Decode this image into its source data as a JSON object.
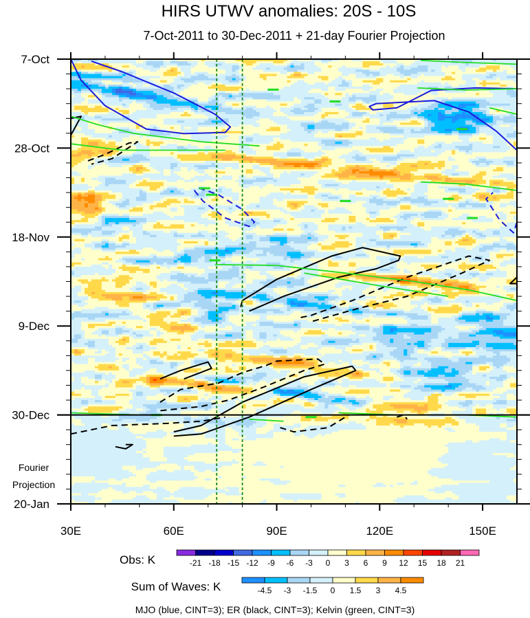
{
  "chart_data": {
    "type": "heatmap",
    "title": "HIRS UTWV anomalies: 20S - 10S",
    "subtitle": "7-Oct-2011 to 30-Dec-2011 + 21-day Fourier Projection",
    "x_axis": {
      "range": [
        30,
        160
      ],
      "ticks": [
        {
          "value": 30,
          "label": "30E"
        },
        {
          "value": 60,
          "label": "60E"
        },
        {
          "value": 90,
          "label": "90E"
        },
        {
          "value": 120,
          "label": "120E"
        },
        {
          "value": 150,
          "label": "150E"
        }
      ]
    },
    "y_axis": {
      "range_days": [
        0,
        105
      ],
      "direction": "time increases downward",
      "ticks": [
        {
          "day": 0,
          "label": "7-Oct"
        },
        {
          "day": 21,
          "label": "28-Oct"
        },
        {
          "day": 42,
          "label": "18-Nov"
        },
        {
          "day": 63,
          "label": "9-Dec"
        },
        {
          "day": 84,
          "label": "30-Dec"
        },
        {
          "day": 105,
          "label": "20-Jan"
        }
      ]
    },
    "projection_start_day": 84,
    "projection_label": [
      "Fourier",
      "Projection"
    ],
    "reference_longitudes": [
      72.5,
      80
    ],
    "obs_colorbar": {
      "label": "Obs: K",
      "levels": [
        "-21",
        "-18",
        "-15",
        "-12",
        "-9",
        "-6",
        "-3",
        "0",
        "3",
        "6",
        "9",
        "12",
        "15",
        "18",
        "21"
      ],
      "colors": [
        "#8a2be2",
        "#00008b",
        "#0000cd",
        "#4169e1",
        "#1e90ff",
        "#00bfff",
        "#a9d6f5",
        "#d4f0fa",
        "#ffffcc",
        "#ffd94a",
        "#ffb347",
        "#ff8c00",
        "#ff4500",
        "#e60000",
        "#b22222",
        "#ff69b4"
      ]
    },
    "waves_colorbar": {
      "label": "Sum of Waves: K",
      "levels": [
        "-4.5",
        "-3",
        "-1.5",
        "0",
        "1.5",
        "3",
        "4.5"
      ],
      "colors": [
        "#1e90ff",
        "#00bfff",
        "#a9d6f5",
        "#d4f0fa",
        "#ffffcc",
        "#ffd94a",
        "#ffb347",
        "#ff8c00"
      ]
    },
    "contour_legend": "MJO (blue, CINT=3); ER (black, CINT=3); Kelvin (green, CINT=3)",
    "series": [
      {
        "name": "MJO",
        "color": "#1a1adc",
        "cint": 3
      },
      {
        "name": "ER",
        "color": "#000000",
        "cint": 3
      },
      {
        "name": "Kelvin",
        "color": "#22dd22",
        "cint": 3
      }
    ],
    "field_features": [
      {
        "kind": "neg",
        "lon": 47,
        "day": 8,
        "value": -10,
        "slon": 10,
        "sday": 5,
        "tilt": -0.14
      },
      {
        "kind": "neg",
        "lon": 37,
        "day": 4,
        "value": -7,
        "slon": 7,
        "sday": 3,
        "tilt": -0.1
      },
      {
        "kind": "neg",
        "lon": 143,
        "day": 14,
        "value": -9,
        "slon": 11,
        "sday": 5,
        "tilt": 0
      },
      {
        "kind": "pos",
        "lon": 110,
        "day": 26,
        "value": 8,
        "slon": 14,
        "sday": 4,
        "tilt": -0.08
      },
      {
        "kind": "pos",
        "lon": 34,
        "day": 34,
        "value": 11,
        "slon": 7,
        "sday": 3,
        "tilt": 0
      },
      {
        "kind": "pos",
        "lon": 35,
        "day": 21,
        "value": 6,
        "slon": 8,
        "sday": 3,
        "tilt": 0
      },
      {
        "kind": "neg",
        "lon": 40,
        "day": 39,
        "value": -5,
        "slon": 7,
        "sday": 3,
        "tilt": 0
      },
      {
        "kind": "neg",
        "lon": 66,
        "day": 47,
        "value": -4,
        "slon": 13,
        "sday": 3,
        "tilt": 0
      },
      {
        "kind": "neg",
        "lon": 95,
        "day": 45,
        "value": -6,
        "slon": 8,
        "sday": 3,
        "tilt": 0
      },
      {
        "kind": "pos",
        "lon": 135,
        "day": 53,
        "value": 9,
        "slon": 12,
        "sday": 3,
        "tilt": -0.11
      },
      {
        "kind": "pos",
        "lon": 42,
        "day": 55,
        "value": 6,
        "slon": 10,
        "sday": 3,
        "tilt": 0
      },
      {
        "kind": "neg",
        "lon": 100,
        "day": 58,
        "value": -8,
        "slon": 9,
        "sday": 3,
        "tilt": -0.1
      },
      {
        "kind": "neg",
        "lon": 70,
        "day": 58,
        "value": -7,
        "slon": 7,
        "sday": 4,
        "tilt": 0
      },
      {
        "kind": "neg",
        "lon": 155,
        "day": 65,
        "value": -6,
        "slon": 9,
        "sday": 6,
        "tilt": 0
      },
      {
        "kind": "pos",
        "lon": 60,
        "day": 62,
        "value": 6,
        "slon": 8,
        "sday": 3,
        "tilt": 0
      },
      {
        "kind": "neg",
        "lon": 128,
        "day": 66,
        "value": -6,
        "slon": 10,
        "sday": 4,
        "tilt": 0
      },
      {
        "kind": "pos",
        "lon": 70,
        "day": 77,
        "value": 10,
        "slon": 12,
        "sday": 3,
        "tilt": -0.12
      },
      {
        "kind": "pos",
        "lon": 96,
        "day": 72,
        "value": 7,
        "slon": 12,
        "sday": 3,
        "tilt": -0.12
      },
      {
        "kind": "neg",
        "lon": 95,
        "day": 79,
        "value": -10,
        "slon": 9,
        "sday": 4,
        "tilt": -0.13
      },
      {
        "kind": "pos",
        "lon": 125,
        "day": 82,
        "value": 6,
        "slon": 12,
        "sday": 3,
        "tilt": 0
      },
      {
        "kind": "neg",
        "lon": 140,
        "day": 76,
        "value": -5,
        "slon": 12,
        "sday": 4,
        "tilt": 0
      },
      {
        "kind": "neg",
        "lon": 75,
        "day": 86,
        "value": -3,
        "slon": 10,
        "sday": 2,
        "tilt": -0.15
      },
      {
        "kind": "neg",
        "lon": 35,
        "day": 92,
        "value": -2,
        "slon": 8,
        "sday": 6,
        "tilt": 0
      },
      {
        "kind": "pos",
        "lon": 135,
        "day": 86,
        "value": 3,
        "slon": 15,
        "sday": 3,
        "tilt": 0
      },
      {
        "kind": "pos",
        "lon": 112,
        "day": 95,
        "value": 1,
        "slon": 30,
        "sday": 8,
        "tilt": 0
      },
      {
        "kind": "neg",
        "lon": 150,
        "day": 98,
        "value": -1,
        "slon": 12,
        "sday": 8,
        "tilt": 0
      }
    ],
    "contours": [
      {
        "wave": "MJO",
        "style": "solid",
        "points": [
          [
            30,
            0
          ],
          [
            33,
            5
          ],
          [
            40,
            11
          ],
          [
            52,
            16.5
          ],
          [
            63,
            17.6
          ],
          [
            75,
            17.3
          ],
          [
            76.5,
            16
          ],
          [
            72,
            13
          ],
          [
            60,
            8
          ],
          [
            45,
            3
          ],
          [
            36,
            0.5
          ]
        ]
      },
      {
        "wave": "MJO",
        "style": "solid",
        "points": [
          [
            160,
            21.5
          ],
          [
            154,
            17
          ],
          [
            146,
            12.5
          ],
          [
            136,
            9.8
          ],
          [
            119,
            10.5
          ],
          [
            117,
            11.2
          ],
          [
            118,
            12
          ],
          [
            125,
            11.5
          ],
          [
            135,
            7.4
          ],
          [
            148,
            6.8
          ],
          [
            160,
            7
          ]
        ]
      },
      {
        "wave": "MJO",
        "style": "dashed",
        "points": [
          [
            66,
            31
          ],
          [
            68.5,
            33.5
          ],
          [
            75,
            37.5
          ],
          [
            82,
            39.5
          ],
          [
            83.5,
            38.5
          ],
          [
            80,
            35.5
          ],
          [
            73,
            32
          ],
          [
            67.5,
            30.5
          ],
          [
            66,
            31
          ]
        ]
      },
      {
        "wave": "MJO",
        "style": "dashed",
        "points": [
          [
            160,
            38.5
          ],
          [
            159,
            41
          ],
          [
            155,
            38
          ],
          [
            151,
            33
          ],
          [
            153,
            31.5
          ]
        ]
      },
      {
        "wave": "ER",
        "style": "solid",
        "points": [
          [
            30,
            14
          ],
          [
            33,
            13.5
          ],
          [
            30,
            18
          ]
        ]
      },
      {
        "wave": "ER",
        "style": "dashed",
        "points": [
          [
            35,
            24
          ],
          [
            40,
            22.5
          ],
          [
            47,
            19.8
          ],
          [
            49.5,
            19.5
          ],
          [
            42,
            23.5
          ],
          [
            36,
            24.8
          ]
        ]
      },
      {
        "wave": "ER",
        "style": "solid",
        "points": [
          [
            79.5,
            58.5
          ],
          [
            80,
            57
          ],
          [
            90,
            52
          ],
          [
            106,
            46.5
          ],
          [
            115,
            44.5
          ],
          [
            126,
            46.5
          ],
          [
            125.5,
            47.5
          ],
          [
            119,
            49.5
          ],
          [
            108,
            51.5
          ],
          [
            92,
            56
          ],
          [
            82,
            59.5
          ]
        ]
      },
      {
        "wave": "ER",
        "style": "dashed",
        "points": [
          [
            97,
            61
          ],
          [
            100,
            60.5
          ],
          [
            112,
            57
          ],
          [
            128,
            51.5
          ],
          [
            146,
            46.5
          ],
          [
            152,
            47.5
          ],
          [
            144,
            50.5
          ],
          [
            128,
            56
          ],
          [
            113,
            59
          ],
          [
            100,
            62
          ]
        ]
      },
      {
        "wave": "ER",
        "style": "solid",
        "points": [
          [
            160,
            53
          ],
          [
            158,
            53
          ],
          [
            160,
            51.5
          ]
        ]
      },
      {
        "wave": "ER",
        "style": "solid",
        "points": [
          [
            56,
            75.5
          ],
          [
            62,
            73.5
          ],
          [
            70,
            71.5
          ],
          [
            71,
            73
          ],
          [
            63,
            75.5
          ]
        ]
      },
      {
        "wave": "ER",
        "style": "dashed",
        "points": [
          [
            56,
            81
          ],
          [
            62,
            78
          ],
          [
            73,
            76.5
          ],
          [
            80,
            74
          ],
          [
            87,
            72.3
          ],
          [
            90,
            71.3
          ],
          [
            102,
            70.8
          ],
          [
            104,
            72
          ],
          [
            98,
            73.5
          ],
          [
            86,
            77.5
          ],
          [
            76,
            80.5
          ],
          [
            68,
            82
          ],
          [
            56,
            83
          ]
        ]
      },
      {
        "wave": "ER",
        "style": "solid",
        "points": [
          [
            60,
            88
          ],
          [
            68,
            86.5
          ],
          [
            80,
            81
          ],
          [
            98,
            75
          ],
          [
            112,
            72.5
          ],
          [
            113,
            73.5
          ],
          [
            100,
            78
          ],
          [
            82,
            84.5
          ],
          [
            68,
            88.5
          ],
          [
            60,
            89
          ]
        ]
      },
      {
        "wave": "ER",
        "style": "dashed",
        "points": [
          [
            30,
            88.5
          ],
          [
            42,
            86.5
          ],
          [
            58,
            86
          ],
          [
            68,
            85.5
          ],
          [
            75,
            84.5
          ]
        ]
      },
      {
        "wave": "ER",
        "style": "dashed",
        "points": [
          [
            91,
            87
          ],
          [
            95,
            88
          ],
          [
            105,
            87
          ],
          [
            111,
            84
          ]
        ]
      },
      {
        "wave": "ER",
        "style": "dashed",
        "points": [
          [
            125,
            84.5
          ],
          [
            127,
            84
          ],
          [
            128,
            85
          ]
        ]
      },
      {
        "wave": "ER",
        "style": "solid",
        "points": [
          [
            43,
            91.5
          ],
          [
            46,
            92
          ],
          [
            48,
            91
          ],
          [
            46,
            91
          ]
        ]
      },
      {
        "wave": "Kelvin",
        "style": "solid",
        "points": [
          [
            30,
            13.5
          ],
          [
            38,
            15.5
          ],
          [
            48,
            17.5
          ],
          [
            58,
            18.5
          ],
          [
            68,
            19.5
          ],
          [
            85,
            20.5
          ]
        ]
      },
      {
        "wave": "Kelvin",
        "style": "solid",
        "points": [
          [
            30,
            20
          ],
          [
            45,
            21.5
          ],
          [
            60,
            21.5
          ],
          [
            75,
            21.5
          ]
        ]
      },
      {
        "wave": "Kelvin",
        "style": "solid",
        "points": [
          [
            132,
            0.3
          ],
          [
            145,
            0.8
          ],
          [
            160,
            1.2
          ]
        ]
      },
      {
        "wave": "Kelvin",
        "style": "solid",
        "points": [
          [
            131,
            6.8
          ],
          [
            145,
            7.3
          ],
          [
            160,
            7
          ]
        ]
      },
      {
        "wave": "Kelvin",
        "style": "solid",
        "points": [
          [
            152,
            11.5
          ],
          [
            160,
            13
          ]
        ]
      },
      {
        "wave": "Kelvin",
        "style": "solid",
        "points": [
          [
            132,
            29
          ],
          [
            145,
            29.5
          ],
          [
            160,
            31
          ]
        ]
      },
      {
        "wave": "Kelvin",
        "style": "solid",
        "points": [
          [
            72,
            48.5
          ],
          [
            90,
            48.7
          ],
          [
            110,
            50.5
          ],
          [
            130,
            52.5
          ],
          [
            146,
            54.5
          ],
          [
            160,
            57
          ]
        ]
      },
      {
        "wave": "Kelvin",
        "style": "solid",
        "points": [
          [
            98,
            50.5
          ],
          [
            120,
            53.5
          ],
          [
            140,
            56
          ]
        ]
      },
      {
        "wave": "Kelvin",
        "style": "solid",
        "points": [
          [
            30,
            83.5
          ],
          [
            50,
            84
          ]
        ]
      },
      {
        "wave": "Kelvin",
        "style": "solid",
        "points": [
          [
            108,
            83.5
          ],
          [
            125,
            84
          ],
          [
            145,
            84
          ],
          [
            160,
            84.5
          ]
        ]
      },
      {
        "wave": "Kelvin",
        "style": "solid",
        "points": [
          [
            82,
            85
          ],
          [
            92,
            85.5
          ]
        ]
      }
    ],
    "kelvin_dashes": [
      {
        "lon": 89,
        "day": 7.2
      },
      {
        "lon": 107,
        "day": 10
      },
      {
        "lon": 144,
        "day": 16.5
      },
      {
        "lon": 71,
        "day": 32
      },
      {
        "lon": 69,
        "day": 30.5
      },
      {
        "lon": 110,
        "day": 33.5
      },
      {
        "lon": 140,
        "day": 33
      },
      {
        "lon": 147,
        "day": 37.5
      },
      {
        "lon": 72,
        "day": 47.5
      },
      {
        "lon": 55,
        "day": 84
      },
      {
        "lon": 100,
        "day": 84.5
      }
    ]
  }
}
